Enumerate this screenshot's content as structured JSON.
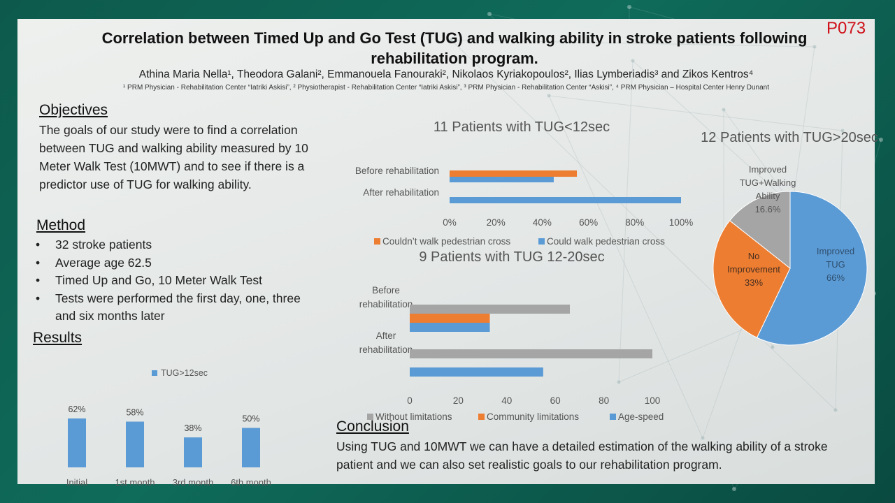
{
  "header": {
    "title": "Correlation between Timed Up and Go Test (TUG) and walking ability in stroke patients following rehabilitation program.",
    "code": "P073",
    "authors": "Athina Maria Nella¹, Theodora Galani², Emmanouela Fanouraki², Nikolaos Kyriakopoulos², Ilias Lymberiadis³ and Zikos Kentros⁴",
    "affiliations": "¹ PRM Physician - Rehabilitation Center “Iatriki Askisi”, ² Physiotherapist - Rehabilitation Center “Iatriki Askisi”, ³ PRM Physician - Rehabilitation Center “Askisi”, ⁴ PRM Physician – Hospital Center Henry Dunant"
  },
  "objectives": {
    "heading": "Objectives",
    "text": "The goals of our study were to find a correlation between TUG and walking ability measured by 10 Meter Walk Test (10MWT) and to see if there is a predictor use of TUG for walking ability."
  },
  "method": {
    "heading": "Method",
    "items": [
      "32 stroke patients",
      "Average age 62.5",
      "Timed Up and Go, 10 Meter Walk Test",
      "Tests were performed the first day, one, three and six months later"
    ]
  },
  "results": {
    "heading": "Results"
  },
  "conclusion": {
    "heading": "Conclusion",
    "text": "Using TUG and 10MWT we can have a detailed estimation of the walking ability of a stroke patient and we can also set realistic goals to our rehabilitation program."
  },
  "chart_data": [
    {
      "id": "results",
      "type": "bar",
      "title": "",
      "categories": [
        "Initial",
        "1st month",
        "3rd month",
        "6th month"
      ],
      "series": [
        {
          "name": "TUG>12sec",
          "color": "#5b9bd5",
          "values": [
            62,
            58,
            38,
            50
          ],
          "labels": [
            "62%",
            "58%",
            "38%",
            "50%"
          ]
        }
      ],
      "ylim": [
        0,
        100
      ],
      "legend": "top",
      "grid": false
    },
    {
      "id": "tug12",
      "type": "bar",
      "orientation": "horizontal",
      "title": "11 Patients with TUG<12sec",
      "categories": [
        "Before rehabilitation",
        "After rehabilitation"
      ],
      "series": [
        {
          "name": "Couldn’t walk pedestrian cross",
          "color": "#ed7d31",
          "values": [
            55,
            null
          ]
        },
        {
          "name": "Could walk pedestrian cross",
          "color": "#5b9bd5",
          "values": [
            45,
            100
          ]
        }
      ],
      "xlim": [
        0,
        100
      ],
      "xticks": [
        "0%",
        "20%",
        "40%",
        "60%",
        "80%",
        "100%"
      ],
      "legend": "bottom",
      "grid": false
    },
    {
      "id": "tug12_20",
      "type": "bar",
      "orientation": "horizontal",
      "title": "9 Patients with TUG 12-20sec",
      "categories": [
        "Before rehabilitation",
        "After rehabilitation"
      ],
      "series": [
        {
          "name": "Without limitations",
          "color": "#a5a5a5",
          "values": [
            66,
            100
          ]
        },
        {
          "name": "Community limitations",
          "color": "#ed7d31",
          "values": [
            33,
            null
          ]
        },
        {
          "name": "Age-speed",
          "color": "#5b9bd5",
          "values": [
            33,
            55
          ]
        }
      ],
      "xlim": [
        0,
        100
      ],
      "xticks": [
        "0",
        "20",
        "40",
        "60",
        "80",
        "100"
      ],
      "legend": "bottom",
      "grid": false
    },
    {
      "id": "tug20",
      "type": "pie",
      "title": "12 Patients with TUG>20sec",
      "slices": [
        {
          "label": "Improved TUG",
          "value": 66,
          "text": "66%",
          "color": "#5b9bd5"
        },
        {
          "label": "No Improvement",
          "value": 33,
          "text": "33%",
          "color": "#ed7d31"
        },
        {
          "label": "Improved TUG+Walking Ability",
          "value": 16.6,
          "text": "16.6%",
          "color": "#a5a5a5"
        }
      ]
    }
  ]
}
